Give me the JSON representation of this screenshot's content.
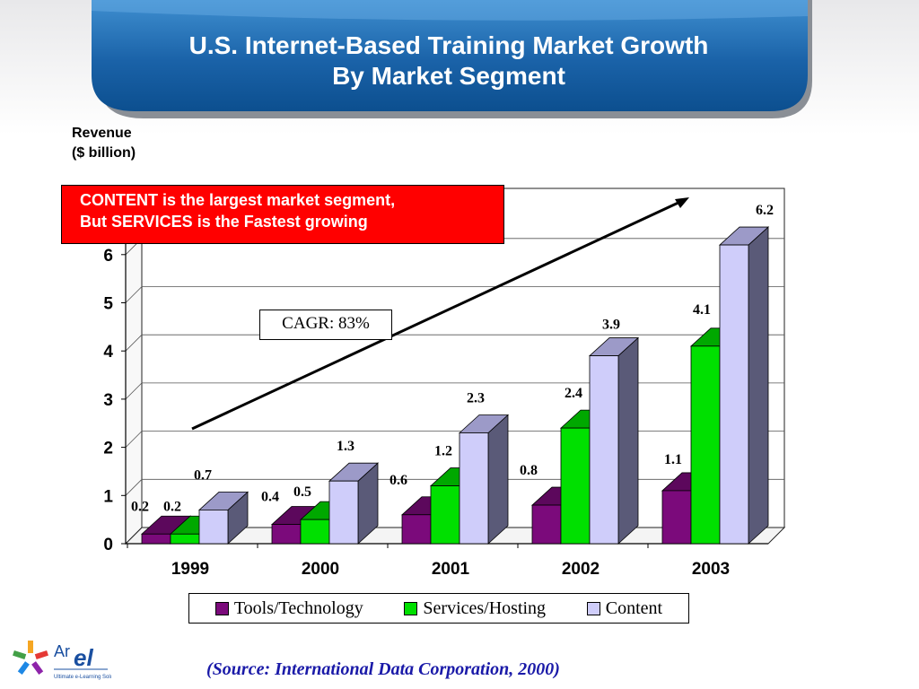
{
  "slide": {
    "title_line1": "U.S. Internet-Based Training Market Growth",
    "title_line2": "By Market Segment",
    "callout_line1": "CONTENT is the largest market segment,",
    "callout_line2": "But SERVICES is the Fastest growing",
    "cagr_label": "CAGR: 83%",
    "source": "(Source: International Data Corporation, 2000)",
    "logo_text": "ArEL",
    "logo_tagline": "Ultimate e-Learning Solutions"
  },
  "chart_data": {
    "type": "bar",
    "subtype": "clustered-3d",
    "ylabel_line1": "Revenue",
    "ylabel_line2": "($ billion)",
    "categories": [
      "1999",
      "2000",
      "2001",
      "2002",
      "2003"
    ],
    "series": [
      {
        "name": "Tools/Technology",
        "color": "#7b0a7b",
        "values": [
          0.2,
          0.4,
          0.6,
          0.8,
          1.1
        ]
      },
      {
        "name": "Services/Hosting",
        "color": "#00e000",
        "values": [
          0.2,
          0.5,
          1.2,
          2.4,
          4.1
        ]
      },
      {
        "name": "Content",
        "color": "#cfcdfa",
        "values": [
          0.7,
          1.3,
          2.3,
          3.9,
          6.2
        ]
      }
    ],
    "ylim": [
      0,
      7
    ],
    "yticks": [
      0,
      1,
      2,
      3,
      4,
      5,
      6
    ],
    "grid": true,
    "legend": "bottom",
    "annotation": "CAGR: 83%"
  }
}
